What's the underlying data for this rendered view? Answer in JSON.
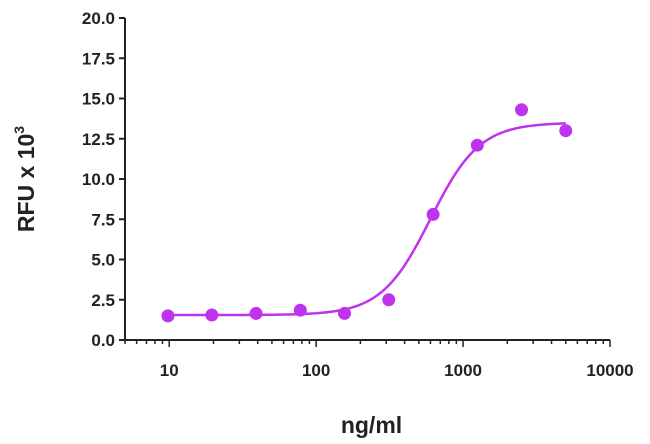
{
  "chart_data": {
    "type": "scatter",
    "title": "",
    "xlabel": "ng/ml",
    "ylabel": "RFU x 10",
    "ylabel_superscript": "3",
    "x_scale": "log",
    "xlim": [
      5,
      10000
    ],
    "ylim": [
      0,
      20
    ],
    "x_tick_values": [
      10,
      100,
      1000,
      10000
    ],
    "x_tick_labels": [
      "10",
      "100",
      "1000",
      "10000"
    ],
    "y_tick_values": [
      0,
      2.5,
      5,
      7.5,
      10,
      12.5,
      15,
      17.5,
      20
    ],
    "y_tick_labels": [
      "0.0",
      "2.5",
      "5.0",
      "7.5",
      "10.0",
      "12.5",
      "15.0",
      "17.5",
      "20.0"
    ],
    "grid": false,
    "legend": "none",
    "color": "#c033ee",
    "points": {
      "x": [
        9.8,
        19.5,
        39,
        78,
        156,
        312,
        625,
        1250,
        2500,
        5000
      ],
      "y": [
        1.5,
        1.55,
        1.65,
        1.85,
        1.65,
        2.5,
        7.8,
        12.1,
        14.3,
        13.0
      ]
    },
    "fit": {
      "type": "4PL",
      "bottom": 1.55,
      "top": 13.5,
      "ec50": 600,
      "hill": 2.6
    }
  }
}
